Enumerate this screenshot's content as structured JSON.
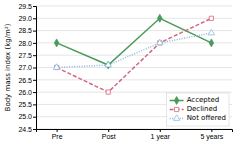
{
  "chart_data": {
    "type": "line",
    "categories": [
      "Pre",
      "Post",
      "1 year",
      "5 years"
    ],
    "series": [
      {
        "name": "Accepted",
        "color": "#4a9a5a",
        "line_style": "solid",
        "marker": "diamond",
        "values": [
          28.0,
          27.1,
          29.0,
          28.0
        ]
      },
      {
        "name": "Declined",
        "color": "#d06880",
        "line_style": "dashed",
        "marker": "square",
        "values": [
          27.0,
          26.0,
          28.0,
          29.0
        ]
      },
      {
        "name": "Not offered",
        "color": "#88bbdd",
        "line_style": "dotted",
        "marker": "triangle",
        "values": [
          27.0,
          27.1,
          28.0,
          28.4
        ]
      }
    ],
    "ylabel": "Body mass index (kg/m²)",
    "ylim": [
      24.5,
      29.5
    ],
    "yticks": [
      24.5,
      {
        "value": 25.0,
        "label": "25.0"
      },
      25.5,
      {
        "value": 26.0,
        "label": "26.0"
      },
      26.5,
      {
        "value": 27.0,
        "label": "27.0"
      },
      27.5,
      {
        "value": 28.0,
        "label": "28.0"
      },
      28.5,
      {
        "value": 29.0,
        "label": "29.0"
      },
      29.5
    ],
    "grid": true,
    "legend": "lower-right"
  }
}
